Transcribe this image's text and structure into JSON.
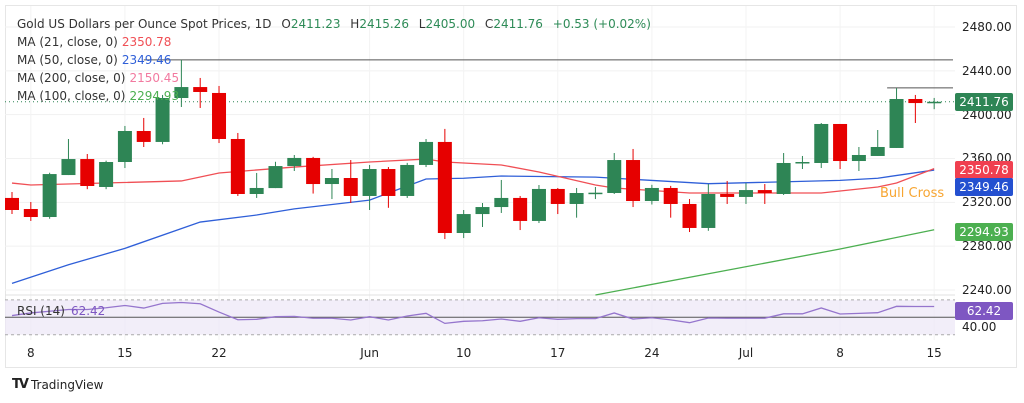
{
  "header": {
    "title": "Gold US Dollars per Ounce Spot Prices, 1D",
    "open_prefix": "O",
    "open": "2411.23",
    "high_prefix": "H",
    "high": "2415.26",
    "low_prefix": "L",
    "low": "2405.00",
    "close_prefix": "C",
    "close": "2411.76",
    "change": "+0.53 (+0.02%)"
  },
  "indicators": [
    {
      "label": "MA (21, close, 0)",
      "value": "2350.78",
      "color": "#f04f55"
    },
    {
      "label": "MA (50, close, 0)",
      "value": "2349.46",
      "color": "#2f5fd8"
    },
    {
      "label": "MA (200, close, 0)",
      "value": "2150.45",
      "color": "#f27aa0"
    },
    {
      "label": "MA (100, close, 0)",
      "value": "2294.93",
      "color": "#4caf50"
    }
  ],
  "rsi": {
    "label": "RSI (14)",
    "value": "62.42",
    "color": "#7e57c2",
    "axis_label": "40.00"
  },
  "annotation": "Bull Cross",
  "branding": "TradingView",
  "colors": {
    "up": "#2e8555",
    "down": "#e60000",
    "last_price": "#2e8555"
  },
  "chart_data": {
    "type": "candlestick",
    "title": "Gold US Dollars per Ounce Spot Prices, 1D",
    "ylim": [
      2230,
      2490
    ],
    "y_ticks": [
      "2480.00",
      "2440.00",
      "2400.00",
      "2360.00",
      "2320.00",
      "2280.00",
      "2240.00"
    ],
    "y_tick_values": [
      2480,
      2440,
      2400,
      2360,
      2320,
      2280,
      2240
    ],
    "x_labels": [
      {
        "label": "8",
        "index": 1
      },
      {
        "label": "15",
        "index": 6
      },
      {
        "label": "22",
        "index": 11
      },
      {
        "label": "Jun",
        "index": 19
      },
      {
        "label": "10",
        "index": 24
      },
      {
        "label": "17",
        "index": 29
      },
      {
        "label": "24",
        "index": 34
      },
      {
        "label": "Jul",
        "index": 39
      },
      {
        "label": "8",
        "index": 44
      },
      {
        "label": "15",
        "index": 49
      }
    ],
    "ohlc": [
      [
        2324.0,
        2329.4,
        2309.3,
        2313.0
      ],
      [
        2313.9,
        2320.3,
        2303.0,
        2306.6
      ],
      [
        2306.6,
        2347.0,
        2305.0,
        2345.8
      ],
      [
        2344.9,
        2377.8,
        2344.9,
        2359.5
      ],
      [
        2359.5,
        2364.1,
        2332.0,
        2334.9
      ],
      [
        2334.0,
        2358.0,
        2332.0,
        2356.8
      ],
      [
        2356.8,
        2389.7,
        2351.3,
        2385.1
      ],
      [
        2385.1,
        2397.0,
        2370.5,
        2375.1
      ],
      [
        2375.1,
        2418.0,
        2373.0,
        2415.2
      ],
      [
        2415.2,
        2450.0,
        2407.0,
        2425.2
      ],
      [
        2425.2,
        2433.5,
        2406.1,
        2420.7
      ],
      [
        2419.8,
        2426.2,
        2374.1,
        2377.8
      ],
      [
        2377.8,
        2383.3,
        2325.8,
        2327.6
      ],
      [
        2327.6,
        2346.8,
        2324.0,
        2333.1
      ],
      [
        2333.0,
        2357.0,
        2333.0,
        2353.1
      ],
      [
        2353.1,
        2363.2,
        2348.6,
        2360.5
      ],
      [
        2360.5,
        2361.5,
        2328.0,
        2336.7
      ],
      [
        2336.7,
        2350.4,
        2323.0,
        2342.2
      ],
      [
        2342.2,
        2358.6,
        2319.4,
        2325.8
      ],
      [
        2325.8,
        2354.1,
        2313.0,
        2350.4
      ],
      [
        2350.4,
        2352.2,
        2315.0,
        2325.8
      ],
      [
        2325.8,
        2356.0,
        2324.0,
        2354.1
      ],
      [
        2354.1,
        2377.8,
        2352.2,
        2375.1
      ],
      [
        2375.1,
        2387.0,
        2286.5,
        2292.0
      ],
      [
        2292.0,
        2313.0,
        2287.4,
        2309.3
      ],
      [
        2309.3,
        2319.4,
        2297.5,
        2315.7
      ],
      [
        2315.7,
        2340.4,
        2310.3,
        2324.0
      ],
      [
        2324.0,
        2325.8,
        2294.7,
        2303.0
      ],
      [
        2303.0,
        2335.8,
        2301.1,
        2332.2
      ],
      [
        2332.2,
        2333.1,
        2309.3,
        2318.5
      ],
      [
        2318.5,
        2333.1,
        2306.0,
        2328.5
      ],
      [
        2328.5,
        2334.0,
        2323.0,
        2328.8
      ],
      [
        2328.5,
        2365.0,
        2327.6,
        2358.6
      ],
      [
        2358.6,
        2368.7,
        2315.7,
        2321.2
      ],
      [
        2321.2,
        2336.0,
        2318.0,
        2333.1
      ],
      [
        2333.1,
        2335.0,
        2306.0,
        2318.5
      ],
      [
        2318.5,
        2323.0,
        2292.9,
        2296.6
      ],
      [
        2296.6,
        2336.7,
        2294.0,
        2327.6
      ],
      [
        2327.6,
        2339.5,
        2318.5,
        2324.9
      ],
      [
        2324.9,
        2337.6,
        2318.5,
        2331.2
      ],
      [
        2331.2,
        2336.7,
        2318.5,
        2328.5
      ],
      [
        2327.6,
        2365.0,
        2326.7,
        2355.9
      ],
      [
        2355.9,
        2362.3,
        2350.4,
        2356.8
      ],
      [
        2355.9,
        2392.4,
        2351.3,
        2391.5
      ],
      [
        2391.5,
        2391.5,
        2350.4,
        2357.7
      ],
      [
        2357.7,
        2370.5,
        2348.6,
        2363.2
      ],
      [
        2362.3,
        2386.0,
        2362.3,
        2370.5
      ],
      [
        2369.6,
        2424.2,
        2369.6,
        2414.3
      ],
      [
        2414.3,
        2418.0,
        2392.4,
        2410.6
      ],
      [
        2411.23,
        2415.26,
        2405.0,
        2411.76
      ]
    ],
    "ma21": [
      [
        0,
        2337.6
      ],
      [
        1,
        2335.8
      ],
      [
        9,
        2339.5
      ],
      [
        11,
        2346.8
      ],
      [
        15,
        2352.2
      ],
      [
        19,
        2356.8
      ],
      [
        22,
        2359.5
      ],
      [
        23,
        2356.8
      ],
      [
        26,
        2354.1
      ],
      [
        28,
        2347.7
      ],
      [
        31,
        2335.8
      ],
      [
        32,
        2333.1
      ],
      [
        36,
        2328.5
      ],
      [
        43,
        2328.5
      ],
      [
        46,
        2334.0
      ],
      [
        47,
        2337.6
      ],
      [
        49,
        2350.78
      ]
    ],
    "ma50": [
      [
        0,
        2246
      ],
      [
        3,
        2263
      ],
      [
        6,
        2278
      ],
      [
        10,
        2302
      ],
      [
        13,
        2308.4
      ],
      [
        15,
        2314
      ],
      [
        19,
        2322
      ],
      [
        22,
        2341.3
      ],
      [
        24,
        2342
      ],
      [
        26,
        2344
      ],
      [
        31,
        2343
      ],
      [
        37,
        2337
      ],
      [
        44,
        2340
      ],
      [
        46,
        2342
      ],
      [
        49,
        2349.46
      ]
    ],
    "ma100": [
      [
        31,
        2235.4
      ],
      [
        44,
        2277.4
      ],
      [
        49,
        2294.93
      ]
    ],
    "h_lines": [
      {
        "level": 2450,
        "from": 7
      },
      {
        "level": 2424.5,
        "from": 46.5
      }
    ],
    "last_price": 2411.76,
    "rsi": [
      52,
      55,
      57,
      59,
      59,
      61,
      63.6,
      60.6,
      66,
      67,
      65.6,
      56,
      47.2,
      47.7,
      50.7,
      51.1,
      48.9,
      48.9,
      46.9,
      50.7,
      46.9,
      51.5,
      54.6,
      43,
      45.4,
      46,
      48,
      45.4,
      49.5,
      47.7,
      48.5,
      48.5,
      55,
      48,
      49.5,
      47,
      43.8,
      49.2,
      49,
      49,
      49,
      54,
      54,
      60.7,
      53.8,
      54.5,
      55.3,
      62.6,
      62.4,
      62.42
    ],
    "rsi_levels": [
      70,
      50,
      30
    ]
  }
}
